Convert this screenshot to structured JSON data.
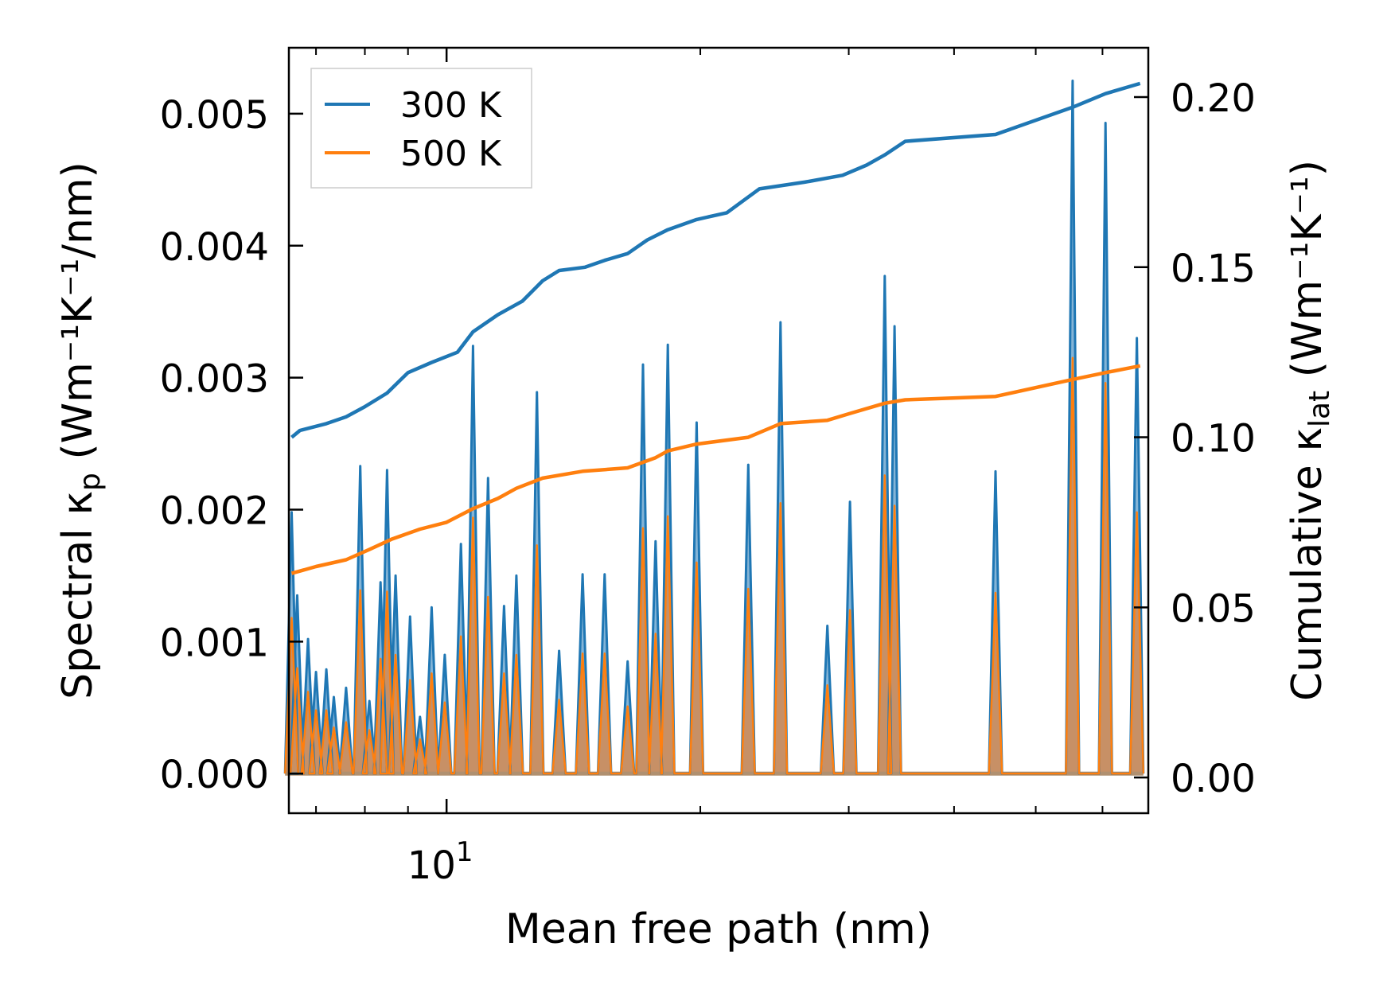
{
  "chart_data": {
    "type": "line",
    "title": "",
    "xlabel": "Mean free path (nm)",
    "xscale": "log",
    "xlim": [
      6.5,
      68
    ],
    "xticks": [
      {
        "value": 10,
        "label": "10",
        "exponent": "1"
      }
    ],
    "y_left": {
      "label": {
        "main": "Spectral κ",
        "sub": "p",
        "units": " (Wm⁻¹K⁻¹/nm)"
      },
      "ylim": [
        -0.0003,
        0.0055
      ],
      "ticks": [
        0.0,
        0.001,
        0.002,
        0.003,
        0.004,
        0.005
      ],
      "tick_labels": [
        "0.000",
        "0.001",
        "0.002",
        "0.003",
        "0.004",
        "0.005"
      ]
    },
    "y_right": {
      "label": {
        "main": "Cumulative κ",
        "sub": "lat",
        "units": " (Wm⁻¹K⁻¹)"
      },
      "ylim": [
        -0.0105,
        0.2145
      ],
      "ticks": [
        0.0,
        0.05,
        0.1,
        0.15,
        0.2
      ],
      "tick_labels": [
        "0.00",
        "0.05",
        "0.10",
        "0.15",
        "0.20"
      ]
    },
    "legend": {
      "position": "top-left",
      "entries": [
        "300 K",
        "500 K"
      ]
    },
    "colors": {
      "300K": "#1f77b4",
      "500K": "#ff7f0e",
      "fill300": "#1f77b4",
      "fill500": "#d28a52"
    },
    "spectral_peaks": [
      {
        "x": 6.55,
        "y300": 0.00198,
        "y500": 0.00118
      },
      {
        "x": 6.65,
        "y300": 0.00135,
        "y500": 0.0008
      },
      {
        "x": 6.85,
        "y300": 0.00102,
        "y500": 0.00062
      },
      {
        "x": 7.0,
        "y300": 0.00077,
        "y500": 0.00048
      },
      {
        "x": 7.2,
        "y300": 0.00079,
        "y500": 0.00048
      },
      {
        "x": 7.35,
        "y300": 0.00058,
        "y500": 0.00035
      },
      {
        "x": 7.6,
        "y300": 0.00065,
        "y500": 0.00039
      },
      {
        "x": 7.9,
        "y300": 0.00233,
        "y500": 0.00139
      },
      {
        "x": 8.1,
        "y300": 0.00055,
        "y500": 0.00033
      },
      {
        "x": 8.35,
        "y300": 0.00145,
        "y500": 0.00087
      },
      {
        "x": 8.5,
        "y300": 0.0023,
        "y500": 0.00138
      },
      {
        "x": 8.7,
        "y300": 0.0015,
        "y500": 0.0009
      },
      {
        "x": 9.05,
        "y300": 0.00119,
        "y500": 0.00071
      },
      {
        "x": 9.3,
        "y300": 0.00043,
        "y500": 0.00026
      },
      {
        "x": 9.6,
        "y300": 0.00126,
        "y500": 0.00076
      },
      {
        "x": 9.95,
        "y300": 0.0009,
        "y500": 0.00054
      },
      {
        "x": 10.4,
        "y300": 0.00174,
        "y500": 0.00104
      },
      {
        "x": 10.75,
        "y300": 0.00324,
        "y500": 0.00194
      },
      {
        "x": 11.2,
        "y300": 0.00224,
        "y500": 0.00134
      },
      {
        "x": 11.7,
        "y300": 0.00127,
        "y500": 0.00076
      },
      {
        "x": 12.1,
        "y300": 0.0015,
        "y500": 0.0009
      },
      {
        "x": 12.8,
        "y300": 0.00289,
        "y500": 0.00173
      },
      {
        "x": 13.6,
        "y300": 0.00093,
        "y500": 0.00056
      },
      {
        "x": 14.5,
        "y300": 0.00151,
        "y500": 0.00091
      },
      {
        "x": 15.4,
        "y300": 0.00151,
        "y500": 0.00091
      },
      {
        "x": 16.4,
        "y300": 0.00085,
        "y500": 0.00051
      },
      {
        "x": 17.1,
        "y300": 0.0031,
        "y500": 0.00186
      },
      {
        "x": 17.7,
        "y300": 0.00176,
        "y500": 0.00106
      },
      {
        "x": 18.3,
        "y300": 0.00325,
        "y500": 0.00195
      },
      {
        "x": 19.8,
        "y300": 0.00266,
        "y500": 0.0016
      },
      {
        "x": 22.8,
        "y300": 0.00234,
        "y500": 0.0014
      },
      {
        "x": 24.9,
        "y300": 0.00342,
        "y500": 0.00205
      },
      {
        "x": 28.3,
        "y300": 0.00112,
        "y500": 0.00067
      },
      {
        "x": 30.1,
        "y300": 0.00206,
        "y500": 0.00124
      },
      {
        "x": 33.1,
        "y300": 0.00377,
        "y500": 0.00226
      },
      {
        "x": 34.0,
        "y300": 0.00339,
        "y500": 0.00203
      },
      {
        "x": 44.8,
        "y300": 0.00229,
        "y500": 0.00137
      },
      {
        "x": 55.3,
        "y300": 0.00525,
        "y500": 0.00315
      },
      {
        "x": 60.5,
        "y300": 0.00493,
        "y500": 0.00296
      },
      {
        "x": 65.9,
        "y300": 0.0033,
        "y500": 0.00198
      }
    ],
    "cumulative_300K": [
      [
        6.55,
        0.1
      ],
      [
        6.7,
        0.102
      ],
      [
        7.2,
        0.104
      ],
      [
        7.6,
        0.106
      ],
      [
        8.0,
        0.109
      ],
      [
        8.5,
        0.113
      ],
      [
        9.0,
        0.119
      ],
      [
        9.6,
        0.122
      ],
      [
        10.3,
        0.125
      ],
      [
        10.75,
        0.131
      ],
      [
        11.5,
        0.136
      ],
      [
        12.3,
        0.14
      ],
      [
        13.0,
        0.146
      ],
      [
        13.6,
        0.149
      ],
      [
        14.6,
        0.15
      ],
      [
        15.4,
        0.152
      ],
      [
        16.4,
        0.154
      ],
      [
        17.3,
        0.158
      ],
      [
        18.3,
        0.161
      ],
      [
        19.8,
        0.164
      ],
      [
        21.5,
        0.166
      ],
      [
        23.5,
        0.173
      ],
      [
        26.6,
        0.175
      ],
      [
        29.5,
        0.177
      ],
      [
        31.5,
        0.18
      ],
      [
        33.1,
        0.183
      ],
      [
        35.0,
        0.187
      ],
      [
        44.8,
        0.189
      ],
      [
        55.3,
        0.197
      ],
      [
        60.5,
        0.201
      ],
      [
        66.5,
        0.204
      ]
    ],
    "cumulative_500K": [
      [
        6.55,
        0.06
      ],
      [
        7.0,
        0.062
      ],
      [
        7.6,
        0.064
      ],
      [
        8.1,
        0.067
      ],
      [
        8.6,
        0.07
      ],
      [
        9.3,
        0.073
      ],
      [
        10.0,
        0.075
      ],
      [
        10.75,
        0.079
      ],
      [
        11.5,
        0.082
      ],
      [
        12.1,
        0.085
      ],
      [
        13.0,
        0.088
      ],
      [
        14.5,
        0.09
      ],
      [
        16.4,
        0.091
      ],
      [
        17.7,
        0.094
      ],
      [
        18.3,
        0.096
      ],
      [
        19.8,
        0.098
      ],
      [
        22.8,
        0.1
      ],
      [
        24.9,
        0.104
      ],
      [
        28.3,
        0.105
      ],
      [
        30.1,
        0.107
      ],
      [
        33.1,
        0.11
      ],
      [
        35.0,
        0.111
      ],
      [
        44.8,
        0.112
      ],
      [
        55.3,
        0.117
      ],
      [
        60.5,
        0.119
      ],
      [
        66.5,
        0.121
      ]
    ]
  }
}
